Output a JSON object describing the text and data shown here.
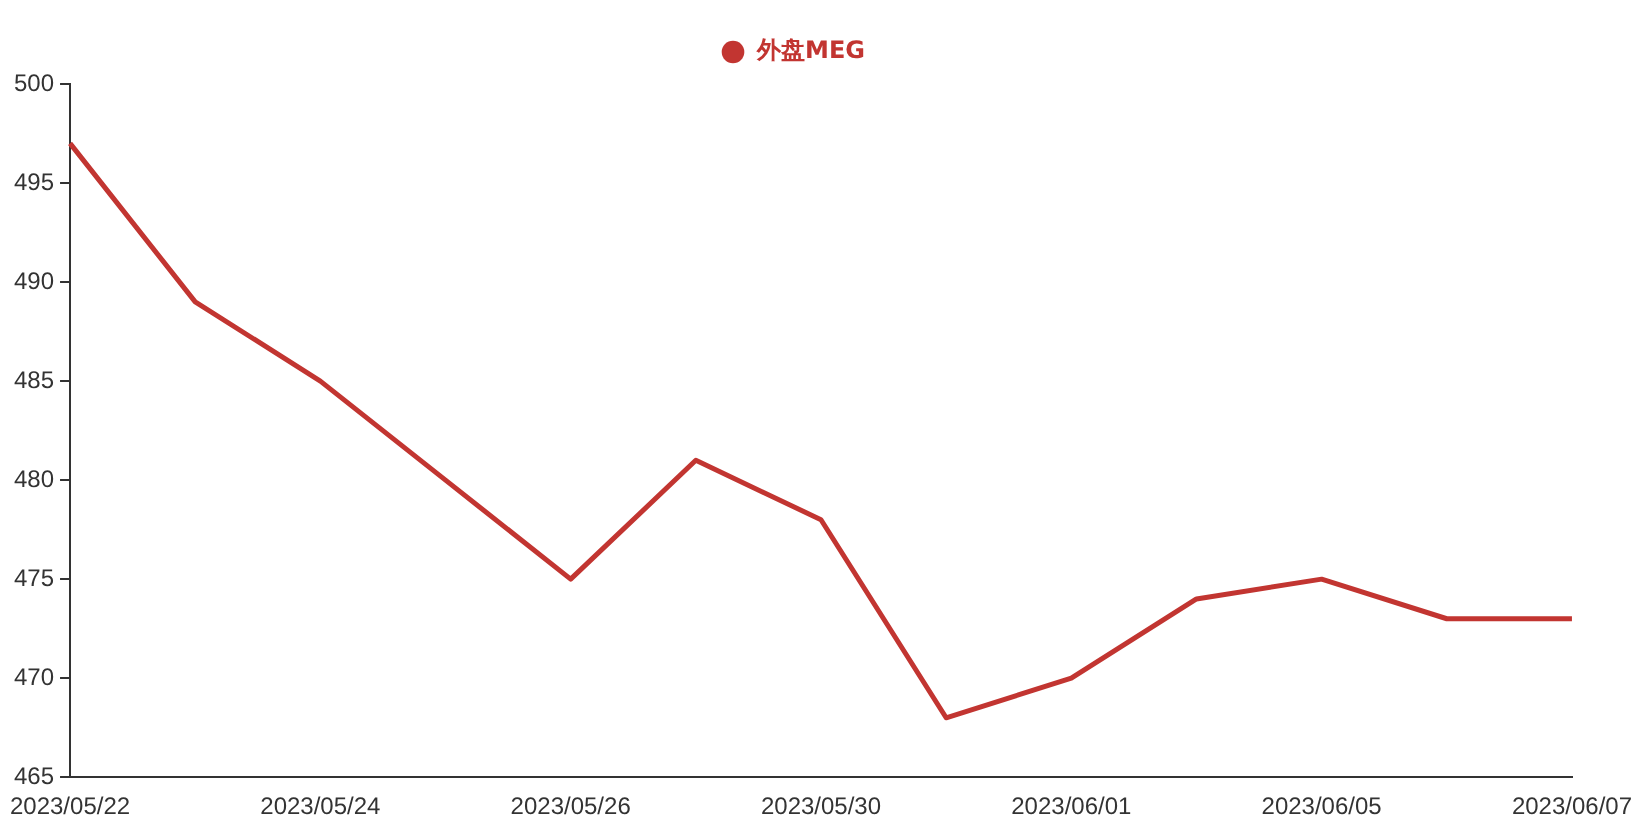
{
  "chart_data": {
    "type": "line",
    "categories": [
      "2023/05/22",
      null,
      "2023/05/24",
      null,
      "2023/05/26",
      null,
      "2023/05/30",
      null,
      "2023/06/01",
      null,
      "2023/06/05",
      null,
      "2023/06/07"
    ],
    "series": [
      {
        "name": "外盘MEG",
        "color": "#c23531",
        "values": [
          497,
          489,
          485,
          480,
          475,
          481,
          478,
          468,
          470,
          474,
          475,
          473,
          473
        ]
      }
    ],
    "ylim": [
      465,
      500
    ],
    "yticks": [
      465,
      470,
      475,
      480,
      485,
      490,
      495,
      500
    ],
    "grid": false,
    "legend": "top",
    "marker": "none",
    "line_style": "solid"
  }
}
